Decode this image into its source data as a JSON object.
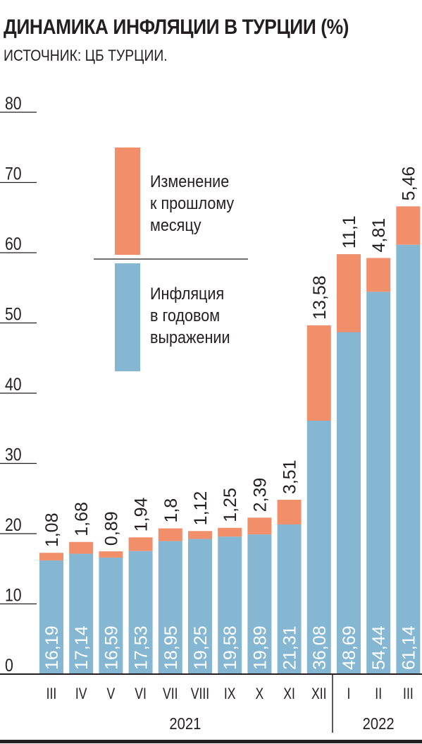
{
  "title": "ДИНАМИКА ИНФЛЯЦИИ В ТУРЦИИ (%)",
  "subtitle": "ИСТОЧНИК: ЦБ ТУРЦИИ.",
  "colors": {
    "annual": "#85b7d3",
    "monthly": "#f18f6b",
    "text": "#231f20"
  },
  "legend": {
    "monthly_lines": [
      "Изменение",
      "к прошлому",
      "месяцу"
    ],
    "annual_lines": [
      "Инфляция",
      "в годовом",
      "выражении"
    ]
  },
  "chart_data": {
    "type": "bar",
    "stacked": true,
    "categories": [
      "III",
      "IV",
      "V",
      "VI",
      "VII",
      "VIII",
      "IX",
      "X",
      "XI",
      "XII",
      "I",
      "II",
      "III"
    ],
    "years": [
      {
        "label": "2021",
        "from": 0,
        "to": 9
      },
      {
        "label": "2022",
        "from": 10,
        "to": 12
      }
    ],
    "series": [
      {
        "name": "Инфляция в годовом выражении",
        "color": "#85b7d3",
        "values": [
          16.19,
          17.14,
          16.59,
          17.53,
          18.95,
          19.25,
          19.58,
          19.89,
          21.31,
          36.08,
          48.69,
          54.44,
          61.14
        ],
        "labels": [
          "16,19",
          "17,14",
          "16,59",
          "17,53",
          "18,95",
          "19,25",
          "19,58",
          "19,89",
          "21,31",
          "36,08",
          "48,69",
          "54,44",
          "61,14"
        ]
      },
      {
        "name": "Изменение к прошлому месяцу",
        "color": "#f18f6b",
        "values": [
          1.08,
          1.68,
          0.89,
          1.94,
          1.8,
          1.12,
          1.25,
          2.39,
          3.51,
          13.58,
          11.1,
          4.81,
          5.46
        ],
        "labels": [
          "1,08",
          "1,68",
          "0,89",
          "1,94",
          "1,8",
          "1,12",
          "1,25",
          "2,39",
          "3,51",
          "13,58",
          "11,1",
          "4,81",
          "5,46"
        ]
      }
    ],
    "ylim": [
      0,
      80
    ],
    "yticks": [
      0,
      10,
      20,
      30,
      40,
      50,
      60,
      70,
      80
    ],
    "ytick_labels": [
      "0",
      "10",
      "20",
      "30",
      "40",
      "50",
      "60",
      "70",
      "80"
    ],
    "grid": false,
    "legend_position": "top-left"
  }
}
